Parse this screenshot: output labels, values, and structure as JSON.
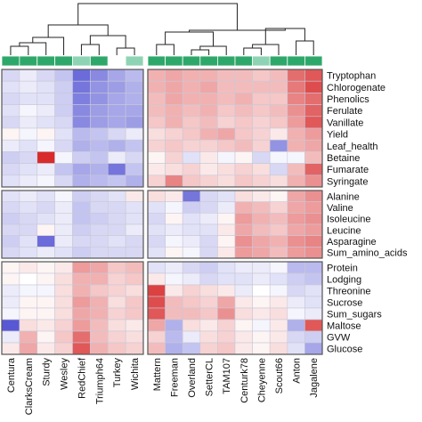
{
  "chart_data": {
    "type": "heatmap",
    "columns": [
      "Centura",
      "ClarksCream",
      "Sturdy",
      "Wesley",
      "RedChief",
      "Triumph64",
      "Turkey",
      "Wichita",
      "Mattern",
      "Freeman",
      "Overland",
      "SetterCL",
      "TAM107",
      "Centurk78",
      "Cheyenne",
      "Scout66",
      "Anton",
      "Jagalene"
    ],
    "column_groups": [
      [
        0,
        7
      ],
      [
        8,
        17
      ]
    ],
    "rows": [
      "Tryptophan",
      "Chlorogenate",
      "Phenolics",
      "Ferulate",
      "Vanillate",
      "Yield",
      "Leaf_health",
      "Betaine",
      "Fumarate",
      "Syringate",
      "Alanine",
      "Valine",
      "Isoleucine",
      "Leucine",
      "Asparagine",
      "Sum_amino_acids",
      "Protein",
      "Lodging",
      "Threonine",
      "Sucrose",
      "Sum_sugars",
      "Maltose",
      "GVW",
      "Glucose"
    ],
    "row_groups": [
      [
        0,
        9
      ],
      [
        10,
        15
      ],
      [
        16,
        23
      ]
    ],
    "value_range": [
      -1,
      1
    ],
    "colorscale": [
      "#3a3acd",
      "#ffffff",
      "#d62020"
    ],
    "column_class_colors": [
      "#2ea86a",
      "#2ea86a",
      "#2ea86a",
      "#2ea86a",
      "#8fd3b5",
      "#2ea86a",
      "#ffffff",
      "#8fd3b5",
      "#2ea86a",
      "#2ea86a",
      "#2ea86a",
      "#2ea86a",
      "#2ea86a",
      "#2ea86a",
      "#8fd3b5",
      "#2ea86a",
      "#2ea86a",
      "#2ea86a"
    ],
    "values": [
      [
        -0.2,
        -0.1,
        -0.2,
        -0.3,
        -0.75,
        -0.6,
        -0.45,
        -0.35,
        0.35,
        0.4,
        0.35,
        0.35,
        0.3,
        0.3,
        0.25,
        0.3,
        0.65,
        0.75
      ],
      [
        -0.15,
        -0.1,
        -0.15,
        -0.25,
        -0.7,
        -0.55,
        -0.5,
        -0.4,
        0.35,
        0.4,
        0.35,
        0.4,
        0.3,
        0.3,
        0.3,
        0.3,
        0.6,
        0.8
      ],
      [
        -0.2,
        -0.15,
        -0.15,
        -0.25,
        -0.65,
        -0.55,
        -0.45,
        -0.4,
        0.3,
        0.4,
        0.35,
        0.35,
        0.3,
        0.35,
        0.25,
        0.25,
        0.55,
        0.65
      ],
      [
        -0.15,
        -0.05,
        -0.1,
        -0.25,
        -0.6,
        -0.5,
        -0.45,
        -0.45,
        0.3,
        0.35,
        0.3,
        0.35,
        0.25,
        0.3,
        0.25,
        0.3,
        0.5,
        0.7
      ],
      [
        -0.2,
        -0.1,
        -0.15,
        -0.2,
        -0.6,
        -0.5,
        -0.45,
        -0.5,
        0.25,
        0.35,
        0.25,
        0.3,
        0.2,
        0.25,
        0.2,
        0.25,
        0.45,
        0.75
      ],
      [
        0.05,
        -0.05,
        0.05,
        -0.15,
        -0.35,
        -0.3,
        -0.2,
        -0.1,
        0.15,
        0.2,
        0.25,
        0.35,
        0.4,
        0.25,
        0.2,
        0.1,
        0.35,
        0.45
      ],
      [
        -0.1,
        -0.15,
        -0.05,
        -0.2,
        -0.4,
        -0.35,
        -0.4,
        -0.3,
        0.2,
        0.25,
        0.2,
        0.2,
        0.25,
        0.3,
        0.2,
        -0.55,
        0.35,
        0.4
      ],
      [
        -0.25,
        -0.2,
        0.95,
        -0.05,
        -0.25,
        -0.3,
        -0.1,
        -0.2,
        0.05,
        0.2,
        -0.15,
        0.1,
        -0.05,
        0.05,
        -0.2,
        -0.05,
        -0.05,
        0.3
      ],
      [
        -0.2,
        -0.15,
        -0.1,
        -0.3,
        -0.45,
        -0.4,
        -0.7,
        -0.3,
        0.1,
        0.15,
        0.2,
        0.1,
        0.15,
        0.2,
        0.15,
        -0.2,
        0.3,
        0.7
      ],
      [
        -0.15,
        -0.1,
        -0.05,
        -0.2,
        -0.4,
        -0.35,
        -0.3,
        -0.4,
        0.2,
        0.55,
        0.25,
        0.2,
        0.15,
        0.25,
        0.2,
        0.15,
        0.35,
        0.5
      ],
      [
        -0.15,
        -0.1,
        -0.15,
        -0.05,
        -0.25,
        -0.2,
        -0.15,
        0.1,
        0.15,
        0.1,
        -0.7,
        -0.2,
        -0.15,
        0.15,
        0.1,
        0.05,
        0.4,
        0.5
      ],
      [
        -0.2,
        -0.15,
        -0.2,
        -0.1,
        -0.3,
        -0.2,
        -0.2,
        -0.15,
        -0.15,
        -0.05,
        -0.25,
        -0.2,
        -0.1,
        0.35,
        0.3,
        0.2,
        0.4,
        0.45
      ],
      [
        -0.25,
        -0.2,
        -0.15,
        -0.1,
        -0.3,
        -0.25,
        -0.2,
        -0.15,
        -0.2,
        0.05,
        -0.15,
        -0.1,
        0.05,
        0.45,
        0.35,
        0.3,
        0.45,
        0.5
      ],
      [
        -0.2,
        -0.2,
        0.05,
        -0.1,
        -0.25,
        -0.2,
        -0.2,
        -0.1,
        -0.15,
        -0.1,
        -0.15,
        -0.15,
        0.1,
        0.4,
        0.3,
        0.25,
        0.4,
        0.45
      ],
      [
        -0.25,
        -0.15,
        -0.75,
        -0.1,
        -0.2,
        -0.2,
        -0.15,
        -0.2,
        -0.2,
        -0.05,
        -0.1,
        -0.2,
        0.05,
        0.5,
        0.4,
        0.35,
        0.5,
        0.55
      ],
      [
        -0.2,
        -0.15,
        -0.1,
        -0.15,
        -0.25,
        -0.2,
        -0.2,
        -0.2,
        -0.15,
        0.05,
        -0.05,
        -0.2,
        0.1,
        0.45,
        0.4,
        0.3,
        0.45,
        0.5
      ],
      [
        0.05,
        0.1,
        0.05,
        0.1,
        0.45,
        0.4,
        0.25,
        0.3,
        -0.15,
        -0.1,
        -0.2,
        -0.25,
        -0.15,
        -0.1,
        -0.1,
        -0.05,
        -0.35,
        -0.35
      ],
      [
        0.05,
        0.0,
        0.05,
        0.15,
        0.35,
        0.35,
        0.2,
        0.25,
        0.1,
        -0.05,
        -0.1,
        -0.2,
        -0.15,
        -0.15,
        -0.1,
        -0.15,
        -0.25,
        -0.3
      ],
      [
        -0.1,
        -0.05,
        -0.05,
        0.15,
        0.35,
        0.25,
        0.2,
        0.15,
        0.85,
        0.1,
        0.2,
        0.15,
        0.1,
        -0.1,
        0.0,
        -0.05,
        -0.2,
        -0.15
      ],
      [
        -0.1,
        0.05,
        0.05,
        0.15,
        0.45,
        0.35,
        0.15,
        0.25,
        0.8,
        0.3,
        0.25,
        0.2,
        0.4,
        0.1,
        0.05,
        0.1,
        -0.1,
        -0.15
      ],
      [
        -0.05,
        0.05,
        0.05,
        0.15,
        0.4,
        0.35,
        0.2,
        0.25,
        0.75,
        0.3,
        0.3,
        0.25,
        0.5,
        0.15,
        0.1,
        0.15,
        -0.05,
        -0.1
      ],
      [
        -0.85,
        0.15,
        0.1,
        0.2,
        0.45,
        0.3,
        0.15,
        0.1,
        0.4,
        -0.4,
        0.15,
        0.1,
        0.2,
        0.05,
        -0.05,
        0.1,
        -0.4,
        0.75
      ],
      [
        -0.1,
        0.35,
        0.05,
        0.25,
        0.65,
        0.3,
        0.2,
        0.15,
        0.2,
        -0.35,
        -0.1,
        0.15,
        0.2,
        0.1,
        0.05,
        0.1,
        -0.2,
        -0.25
      ],
      [
        0.1,
        0.4,
        0.1,
        0.2,
        0.75,
        0.35,
        0.25,
        0.2,
        0.3,
        -0.4,
        -0.3,
        0.2,
        0.25,
        0.1,
        0.05,
        0.15,
        -0.15,
        -0.45
      ]
    ]
  }
}
